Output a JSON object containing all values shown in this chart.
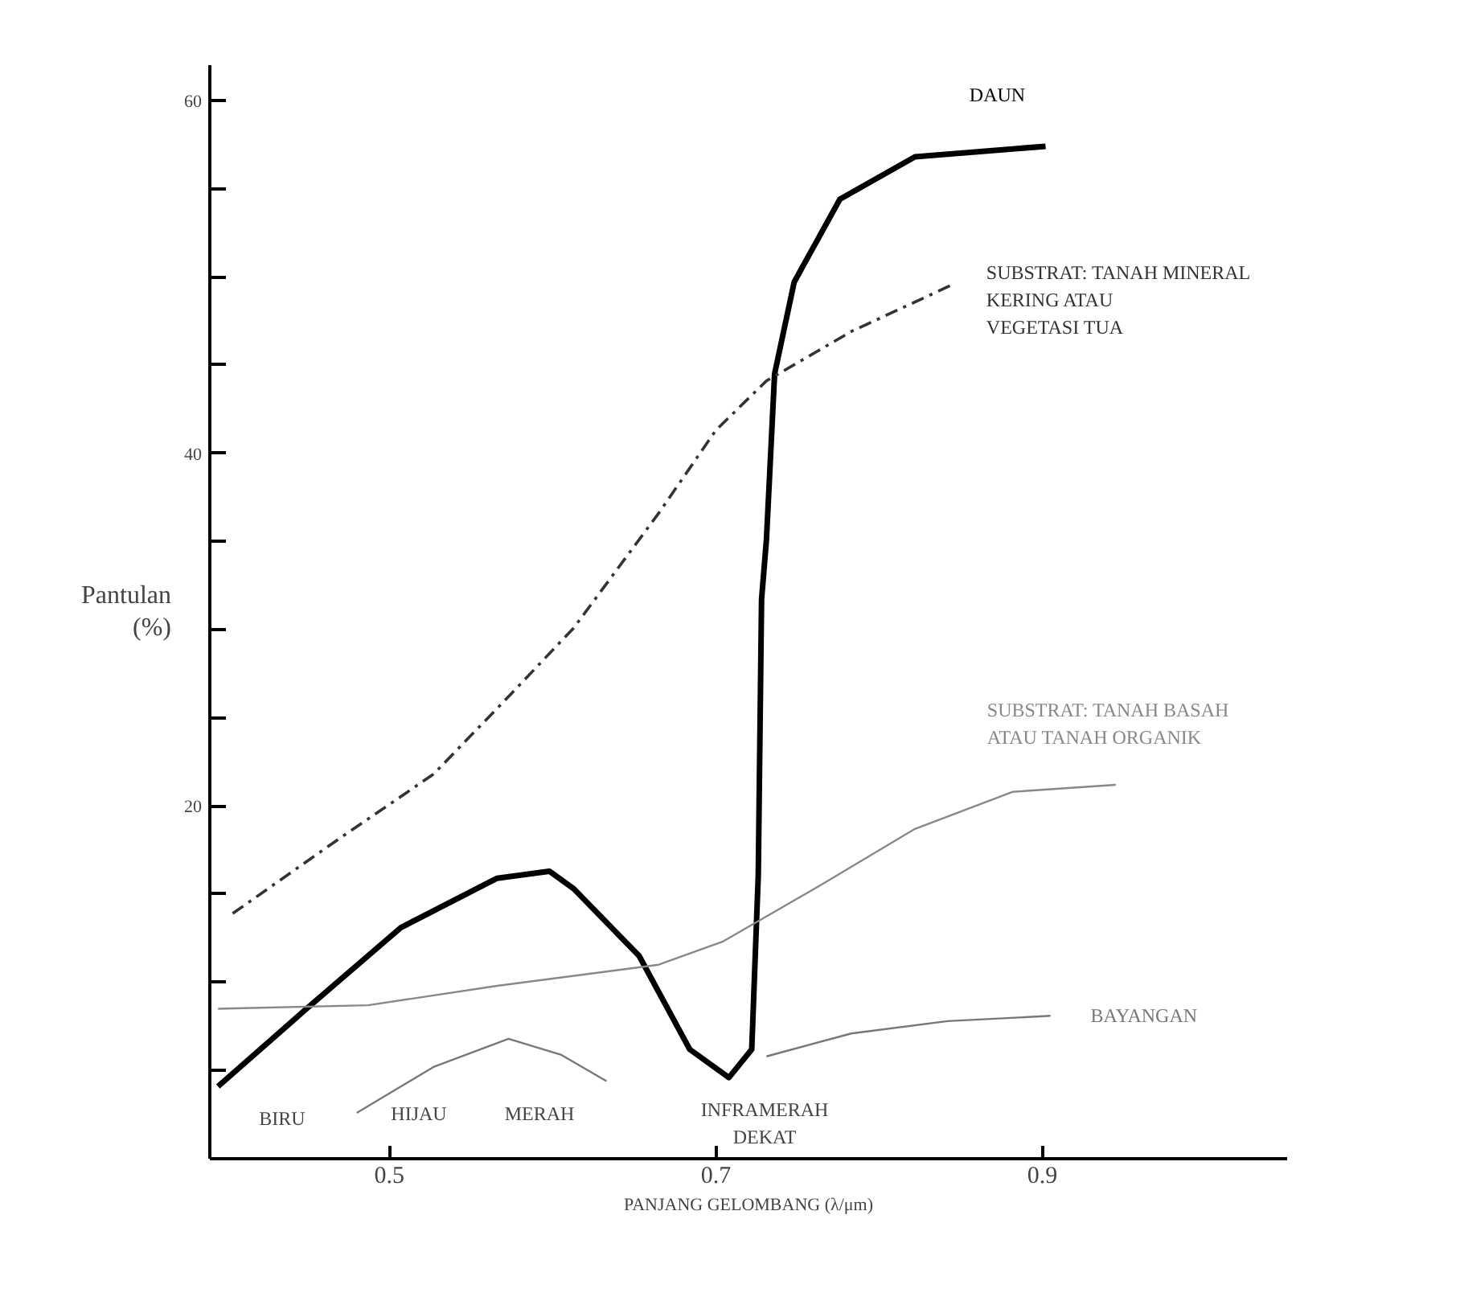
{
  "chart_data": {
    "type": "line",
    "xlabel": "PANJANG GELOMBANG (λ/μm)",
    "ylabel": "Pantulan\n(%)",
    "xlim": [
      0.39,
      1.05
    ],
    "ylim": [
      0,
      62
    ],
    "xticks": [
      0.5,
      0.7,
      0.9
    ],
    "yticks": [
      {
        "value": 5,
        "label": null
      },
      {
        "value": 10,
        "label": null
      },
      {
        "value": 15,
        "label": null
      },
      20,
      {
        "value": 25,
        "label": null
      },
      {
        "value": 30,
        "label": null
      },
      {
        "value": 35,
        "label": null
      },
      40,
      {
        "value": 45,
        "label": null
      },
      {
        "value": 50,
        "label": null
      },
      {
        "value": 55,
        "label": null
      },
      60
    ],
    "grid": false,
    "marker": "none",
    "series": [
      {
        "name": "DAUN",
        "color": "#000000",
        "line_style": "solid",
        "x": [
          0.395,
          0.448,
          0.507,
          0.566,
          0.598,
          0.613,
          0.653,
          0.684,
          0.708,
          0.722,
          0.726,
          0.728,
          0.731,
          0.736,
          0.748,
          0.776,
          0.822,
          0.902
        ],
        "values": [
          4.1,
          8.4,
          13.1,
          15.9,
          16.3,
          15.3,
          11.5,
          6.2,
          4.6,
          6.2,
          16.1,
          31.7,
          35.1,
          44.5,
          49.7,
          54.4,
          56.8,
          57.4
        ]
      },
      {
        "name": "SUBSTRAT: TANAH MINERAL\nKERING ATAU\nVEGETASI TUA",
        "color": "#333333",
        "line_style": "dashed",
        "x": [
          0.404,
          0.467,
          0.527,
          0.573,
          0.613,
          0.665,
          0.7,
          0.731,
          0.783,
          0.846
        ],
        "values": [
          13.9,
          18.0,
          21.8,
          26.2,
          30.1,
          36.6,
          41.3,
          44.1,
          46.9,
          49.6
        ]
      },
      {
        "name": "SUBSTRAT: TANAH BASAH\nATAU TANAH ORGANIK",
        "color": "#888888",
        "line_style": "solid",
        "x": [
          0.395,
          0.487,
          0.566,
          0.665,
          0.704,
          0.764,
          0.822,
          0.882,
          0.945
        ],
        "values": [
          8.5,
          8.7,
          9.8,
          11.0,
          12.3,
          15.5,
          18.7,
          20.8,
          21.2
        ]
      },
      {
        "name": "BAYANGAN",
        "color": "#777777",
        "line_style": "solid",
        "x": [
          0.48,
          0.527,
          0.573,
          0.605,
          0.633,
          0.68,
          0.731,
          0.783,
          0.842,
          0.905
        ],
        "values": [
          2.6,
          5.2,
          6.8,
          5.9,
          4.4,
          null,
          5.8,
          7.1,
          7.8,
          8.1
        ]
      }
    ],
    "annotations": [
      "BIRU",
      "HIJAU",
      "MERAH",
      "INFRAMERAH\nDEKAT"
    ]
  }
}
